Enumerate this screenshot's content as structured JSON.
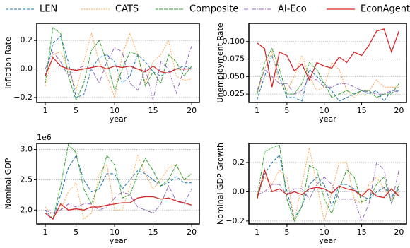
{
  "chart_data": [
    {
      "type": "line",
      "ylabel": "Inflation Rate",
      "xlabel": "year",
      "x": [
        1,
        2,
        3,
        4,
        5,
        6,
        7,
        8,
        9,
        10,
        11,
        12,
        13,
        14,
        15,
        16,
        17,
        18,
        19,
        20
      ],
      "xlim": [
        -0.1,
        21
      ],
      "xticks": [
        1,
        5,
        10,
        15,
        20
      ],
      "ylim": [
        -0.235,
        0.32
      ],
      "yticks": [
        {
          "value": -0.2,
          "label": "−0.2"
        },
        {
          "value": 0,
          "label": "0.0"
        },
        0.2
      ],
      "grid": true,
      "series": [
        {
          "name": "LEN",
          "color": "#1f77b4",
          "dash": "4,2",
          "values": [
            -0.05,
            0.18,
            0.23,
            0.05,
            -0.2,
            -0.18,
            0.0,
            0.08,
            0.1,
            0.05,
            -0.1,
            -0.05,
            0.1,
            0.05,
            -0.02,
            -0.05,
            -0.02,
            0.0,
            0.02,
            0.0
          ]
        },
        {
          "name": "CATS",
          "color": "#ffa552",
          "dash": "2,1.5",
          "values": [
            -0.12,
            0.1,
            0.12,
            0.0,
            -0.15,
            0.05,
            0.25,
            0.05,
            -0.05,
            -0.2,
            0.1,
            0.25,
            0.1,
            -0.1,
            0.05,
            0.1,
            0.2,
            -0.05,
            -0.08,
            -0.07
          ]
        },
        {
          "name": "Composite",
          "color": "#2ca02c",
          "dash": "4,1,1,1",
          "values": [
            -0.1,
            0.29,
            0.25,
            -0.05,
            -0.22,
            -0.1,
            0.13,
            0.2,
            0.05,
            -0.15,
            0.0,
            0.12,
            0.1,
            -0.12,
            -0.02,
            -0.1,
            0.1,
            0.05,
            -0.05,
            0.02
          ]
        },
        {
          "name": "AI-Eco",
          "color": "#9467bd",
          "dash": "6,2,1,2",
          "values": [
            0.0,
            0.12,
            0.05,
            -0.05,
            0.0,
            0.02,
            0.0,
            -0.1,
            0.05,
            0.15,
            0.12,
            -0.1,
            -0.15,
            0.0,
            -0.22,
            0.05,
            0.0,
            -0.17,
            0.0,
            0.16
          ]
        },
        {
          "name": "EconAgent",
          "color": "#d62728",
          "values": [
            -0.05,
            0.08,
            0.02,
            0.0,
            -0.01,
            0.0,
            0.01,
            0.02,
            0.0,
            0.02,
            0.01,
            0.02,
            0.0,
            -0.02,
            0.02,
            -0.02,
            -0.03,
            0.0,
            0.0,
            0.0
          ]
        }
      ]
    },
    {
      "type": "line",
      "ylabel": "Unemployment Rate",
      "xlabel": "year",
      "x": [
        1,
        2,
        3,
        4,
        5,
        6,
        7,
        8,
        9,
        10,
        11,
        12,
        13,
        14,
        15,
        16,
        17,
        18,
        19,
        20
      ],
      "xlim": [
        -0.1,
        21
      ],
      "xticks": [
        1,
        5,
        10,
        15,
        20
      ],
      "ylim": [
        0.013,
        0.126
      ],
      "yticks": [
        0.025,
        {
          "value": 0.05,
          "label": "0.050"
        },
        0.075,
        {
          "value": 0.1,
          "label": "0.100"
        }
      ],
      "grid": true,
      "series": [
        {
          "name": "LEN",
          "color": "#1f77b4",
          "dash": "4,2",
          "values": [
            0.017,
            0.05,
            0.08,
            0.05,
            0.02,
            0.02,
            0.015,
            0.06,
            0.05,
            0.04,
            0.03,
            0.015,
            0.02,
            0.025,
            0.03,
            0.025,
            0.03,
            0.015,
            0.03,
            0.03
          ]
        },
        {
          "name": "CATS",
          "color": "#ffa552",
          "dash": "2,1.5",
          "values": [
            0.025,
            0.06,
            0.085,
            0.04,
            0.03,
            0.05,
            0.08,
            0.05,
            0.03,
            0.035,
            0.07,
            0.06,
            0.03,
            0.02,
            0.03,
            0.03,
            0.045,
            0.035,
            0.035,
            0.035
          ]
        },
        {
          "name": "Composite",
          "color": "#2ca02c",
          "dash": "4,1,1,1",
          "values": [
            0.025,
            0.07,
            0.09,
            0.06,
            0.025,
            0.025,
            0.04,
            0.07,
            0.06,
            0.04,
            0.02,
            0.025,
            0.03,
            0.025,
            0.03,
            0.03,
            0.02,
            0.025,
            0.025,
            0.04
          ]
        },
        {
          "name": "AI-Eco",
          "color": "#9467bd",
          "dash": "6,2,1,2",
          "values": [
            0.03,
            0.06,
            0.05,
            0.04,
            0.04,
            0.025,
            0.03,
            0.05,
            0.045,
            0.035,
            0.035,
            0.04,
            0.04,
            0.035,
            0.03,
            0.028,
            0.025,
            0.025,
            0.03,
            0.028
          ]
        },
        {
          "name": "EconAgent",
          "color": "#d62728",
          "values": [
            0.098,
            0.09,
            0.035,
            0.085,
            0.08,
            0.058,
            0.068,
            0.045,
            0.07,
            0.065,
            0.062,
            0.078,
            0.07,
            0.085,
            0.08,
            0.095,
            0.115,
            0.118,
            0.085,
            0.115
          ]
        }
      ]
    },
    {
      "type": "line",
      "ylabel": "Nominal GDP",
      "xlabel": "year",
      "offset_label": "1e6",
      "x": [
        1,
        2,
        3,
        4,
        5,
        6,
        7,
        8,
        9,
        10,
        11,
        12,
        13,
        14,
        15,
        16,
        17,
        18,
        19,
        20
      ],
      "xlim": [
        -0.1,
        21
      ],
      "xticks": [
        1,
        5,
        10,
        15,
        20
      ],
      "ylim": [
        1.77,
        3.1
      ],
      "yticks": [
        {
          "value": 2,
          "label": "2.0"
        },
        2.5,
        {
          "value": 3,
          "label": "3.0"
        }
      ],
      "grid": true,
      "series": [
        {
          "name": "LEN",
          "color": "#1f77b4",
          "dash": "4,2",
          "values": [
            2.0,
            1.85,
            2.25,
            2.7,
            2.9,
            2.5,
            2.3,
            2.35,
            2.6,
            2.6,
            2.35,
            2.5,
            2.65,
            2.6,
            2.5,
            2.4,
            2.45,
            2.55,
            2.45,
            2.45
          ]
        },
        {
          "name": "CATS",
          "color": "#ffa552",
          "dash": "2,1.5",
          "values": [
            2.05,
            1.9,
            2.0,
            2.3,
            2.45,
            1.85,
            1.95,
            2.6,
            2.75,
            2.0,
            2.0,
            2.4,
            2.9,
            2.6,
            2.35,
            2.5,
            2.7,
            2.75,
            2.5,
            2.5
          ]
        },
        {
          "name": "Composite",
          "color": "#2ca02c",
          "dash": "4,1,1,1",
          "values": [
            1.95,
            1.85,
            2.4,
            3.08,
            2.95,
            2.35,
            2.1,
            2.45,
            2.9,
            2.75,
            2.2,
            2.25,
            2.6,
            2.85,
            2.65,
            2.4,
            2.5,
            2.75,
            2.5,
            2.6
          ]
        },
        {
          "name": "AI-Eco",
          "color": "#9467bd",
          "dash": "6,2,1,2",
          "values": [
            2.0,
            1.95,
            2.0,
            2.1,
            2.05,
            2.1,
            2.1,
            2.0,
            2.05,
            2.2,
            2.3,
            2.25,
            2.05,
            2.0,
            1.95,
            2.1,
            2.4,
            2.15,
            2.1,
            2.35
          ]
        },
        {
          "name": "EconAgent",
          "color": "#d62728",
          "values": [
            1.95,
            1.85,
            2.1,
            2.0,
            2.02,
            2.0,
            2.05,
            2.05,
            2.08,
            2.1,
            2.12,
            2.12,
            2.2,
            2.22,
            2.22,
            2.18,
            2.2,
            2.15,
            2.12,
            2.08
          ]
        }
      ]
    },
    {
      "type": "line",
      "ylabel": "Nominal GDP Growth",
      "xlabel": "year",
      "x": [
        1,
        2,
        3,
        4,
        5,
        6,
        7,
        8,
        9,
        10,
        11,
        12,
        13,
        14,
        15,
        16,
        17,
        18,
        19,
        20
      ],
      "xlim": [
        -0.1,
        21
      ],
      "xticks": [
        1,
        5,
        10,
        15,
        20
      ],
      "ylim": [
        -0.22,
        0.33
      ],
      "yticks": [
        {
          "value": -0.2,
          "label": "−0.2"
        },
        {
          "value": 0,
          "label": "0.0"
        },
        0.2
      ],
      "grid": true,
      "series": [
        {
          "name": "LEN",
          "color": "#1f77b4",
          "dash": "4,2",
          "values": [
            -0.05,
            0.12,
            0.2,
            0.25,
            0.0,
            -0.18,
            -0.1,
            0.05,
            0.1,
            0.05,
            -0.1,
            0.05,
            0.05,
            0.02,
            -0.03,
            -0.05,
            0.0,
            0.03,
            -0.03,
            0.02
          ]
        },
        {
          "name": "CATS",
          "color": "#ffa552",
          "dash": "2,1.5",
          "values": [
            -0.02,
            0.1,
            0.05,
            0.15,
            0.1,
            -0.2,
            0.05,
            0.3,
            0.05,
            -0.2,
            0.0,
            0.2,
            0.2,
            -0.05,
            -0.08,
            0.05,
            0.1,
            0.02,
            -0.05,
            0.0
          ]
        },
        {
          "name": "Composite",
          "color": "#2ca02c",
          "dash": "4,1,1,1",
          "values": [
            -0.05,
            0.27,
            0.3,
            0.32,
            -0.05,
            -0.2,
            -0.1,
            0.18,
            0.15,
            -0.05,
            -0.15,
            0.02,
            0.15,
            0.1,
            -0.07,
            -0.05,
            0.05,
            0.1,
            -0.08,
            0.05
          ]
        },
        {
          "name": "AI-Eco",
          "color": "#9467bd",
          "dash": "6,2,1,2",
          "values": [
            -0.02,
            0.0,
            0.05,
            0.05,
            -0.02,
            0.02,
            0.02,
            -0.05,
            0.05,
            0.1,
            0.05,
            -0.05,
            -0.05,
            -0.05,
            -0.2,
            -0.08,
            0.2,
            0.15,
            -0.08,
            0.15
          ]
        },
        {
          "name": "EconAgent",
          "color": "#d62728",
          "values": [
            -0.05,
            0.15,
            0.0,
            0.02,
            -0.02,
            0.0,
            -0.02,
            0.02,
            0.03,
            0.02,
            -0.01,
            0.04,
            0.02,
            0.01,
            -0.03,
            0.02,
            -0.03,
            -0.04,
            0.02,
            -0.03
          ]
        }
      ]
    }
  ]
}
